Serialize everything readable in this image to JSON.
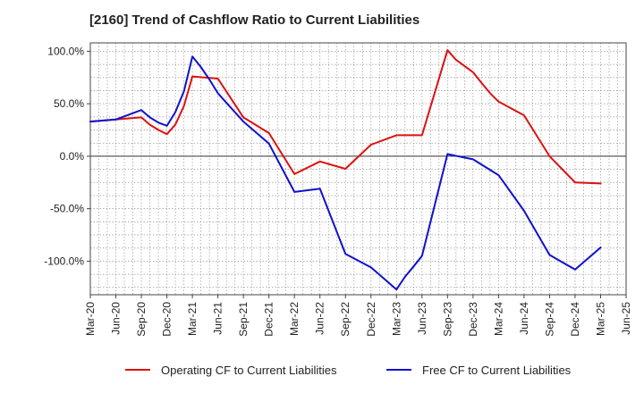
{
  "chart_data": {
    "type": "line",
    "title": "[2160]  Trend of Cashflow Ratio to Current Liabilities",
    "xlabel": "",
    "ylabel": "",
    "x_ticks": [
      "Mar-20",
      "Jun-20",
      "Sep-20",
      "Dec-20",
      "Mar-21",
      "Jun-21",
      "Sep-21",
      "Dec-21",
      "Mar-22",
      "Jun-22",
      "Sep-22",
      "Dec-22",
      "Mar-23",
      "Jun-23",
      "Sep-23",
      "Dec-23",
      "Mar-24",
      "Jun-24",
      "Sep-24",
      "Dec-24",
      "Mar-25",
      "Jun-25"
    ],
    "y_ticks": [
      100,
      50,
      0,
      -50,
      -100
    ],
    "y_tick_labels": [
      "100.0%",
      "50.0%",
      "0.0%",
      "-50.0%",
      "-100.0%"
    ],
    "ylim": [
      -132,
      108
    ],
    "xlim_index": [
      0,
      21
    ],
    "grid": true,
    "legend_position": "bottom",
    "series": [
      {
        "name": "Operating CF to Current Liabilities",
        "color": "#dd1111",
        "x": [
          0,
          1,
          2,
          2.33,
          2.67,
          3,
          3.33,
          3.67,
          4,
          5,
          6,
          7,
          8,
          9,
          10,
          11,
          12,
          13,
          14,
          14.33,
          14.67,
          15,
          15.33,
          15.67,
          16,
          17,
          18,
          19,
          20
        ],
        "values": [
          33,
          35,
          37,
          30,
          25,
          21,
          30,
          48,
          76,
          74,
          37,
          22,
          -17,
          -5,
          -12,
          11,
          20,
          20,
          101,
          92,
          86,
          80,
          70,
          60,
          52,
          39,
          0,
          -25,
          -26
        ]
      },
      {
        "name": "Free CF to Current Liabilities",
        "color": "#1111cc",
        "x": [
          0,
          1,
          2,
          2.33,
          2.67,
          3,
          3.33,
          3.67,
          4,
          4.33,
          4.67,
          5,
          6,
          7,
          8,
          9,
          10,
          11,
          12,
          12.33,
          12.67,
          13,
          14,
          15,
          16,
          17,
          18,
          19,
          20
        ],
        "values": [
          33,
          35,
          44,
          37,
          32,
          29,
          42,
          62,
          95,
          85,
          73,
          60,
          33,
          12,
          -34,
          -31,
          -93,
          -106,
          -127,
          -115,
          -105,
          -95,
          2,
          -3,
          -18,
          -52,
          -94,
          -108,
          -87
        ]
      }
    ]
  }
}
